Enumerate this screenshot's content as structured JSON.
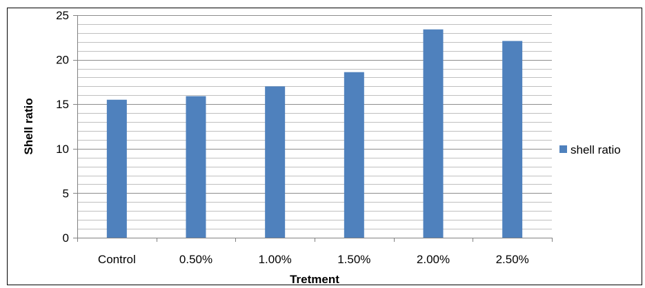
{
  "chart_data": {
    "type": "bar",
    "categories": [
      "Control",
      "0.50%",
      "1.00%",
      "1.50%",
      "2.00%",
      "2.50%"
    ],
    "series": [
      {
        "name": "shell ratio",
        "values": [
          15.5,
          15.9,
          17.0,
          18.6,
          23.4,
          22.1
        ],
        "color": "#4F81BD"
      }
    ],
    "xlabel": "Tretment",
    "ylabel": "Shell  ratio",
    "ylim": [
      0,
      25
    ],
    "yticks": [
      0,
      5,
      10,
      15,
      20,
      25
    ],
    "minor_gridlines_per_major": 5,
    "grid": true,
    "legend": "right"
  }
}
